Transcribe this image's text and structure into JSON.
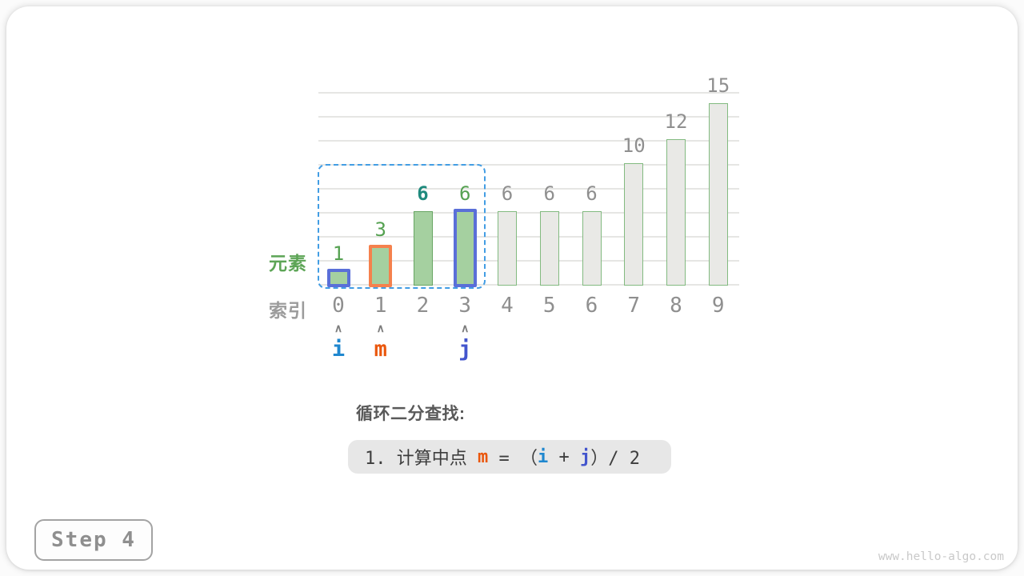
{
  "page": {
    "step_badge": "Step 4",
    "watermark": "www.hello-algo.com"
  },
  "axis_labels": {
    "elements": "元素",
    "index": "索引"
  },
  "caption": {
    "title": "循环二分查找:"
  },
  "formula": {
    "segments": [
      {
        "text": "1. 计算中点 ",
        "color": "#3d3d3d",
        "bold": false
      },
      {
        "text": "m",
        "color": "#ea570d",
        "bold": true
      },
      {
        "text": " = （",
        "color": "#3d3d3d",
        "bold": false
      },
      {
        "text": "i",
        "color": "#1f87cf",
        "bold": true
      },
      {
        "text": " + ",
        "color": "#3d3d3d",
        "bold": false
      },
      {
        "text": "j",
        "color": "#4355cd",
        "bold": true
      },
      {
        "text": "）/ 2",
        "color": "#3d3d3d",
        "bold": false
      }
    ]
  },
  "pointers": [
    {
      "name": "i",
      "index": 0,
      "color": "#1f87cf"
    },
    {
      "name": "m",
      "index": 1,
      "color": "#ea570d"
    },
    {
      "name": "j",
      "index": 3,
      "color": "#4355cd"
    }
  ],
  "colors": {
    "green_fill": "#a5d0a0",
    "green_border": "#67a563",
    "gray_fill": "#e9e9e6",
    "gray_bar_border": "#82ba80",
    "blue_highlight": "#5a6fd8",
    "orange_highlight": "#f5814d",
    "dashed_range": "#429de4",
    "label_green": "#55a151",
    "label_teal": "#1f8a7d",
    "label_gray": "#8f8f8f",
    "axis_green": "#5da556",
    "axis_gray": "#9c9c9c",
    "index_gray": "#8f8f8f"
  },
  "chart_data": {
    "type": "bar",
    "title": "",
    "xlabel": "索引",
    "ylabel": "元素",
    "categories": [
      "0",
      "1",
      "2",
      "3",
      "4",
      "5",
      "6",
      "7",
      "8",
      "9"
    ],
    "values": [
      1,
      3,
      6,
      6,
      6,
      6,
      6,
      10,
      12,
      15
    ],
    "ylim": [
      0,
      16
    ],
    "grid": true,
    "gridline_step": 2,
    "search_range": {
      "from_index": 0,
      "to_index": 3
    },
    "bars": [
      {
        "index": 0,
        "value": 1,
        "fill": "green_fill",
        "border": "blue_highlight",
        "border_width": 4,
        "label_color": "label_green",
        "label_bold": false
      },
      {
        "index": 1,
        "value": 3,
        "fill": "green_fill",
        "border": "orange_highlight",
        "border_width": 4,
        "label_color": "label_green",
        "label_bold": false
      },
      {
        "index": 2,
        "value": 6,
        "fill": "green_fill",
        "border": "green_border",
        "border_width": 1.5,
        "label_color": "label_teal",
        "label_bold": true
      },
      {
        "index": 3,
        "value": 6,
        "fill": "green_fill",
        "border": "blue_highlight",
        "border_width": 4,
        "label_color": "label_green",
        "label_bold": false
      },
      {
        "index": 4,
        "value": 6,
        "fill": "gray_fill",
        "border": "gray_bar_border",
        "border_width": 1.5,
        "label_color": "label_gray",
        "label_bold": false
      },
      {
        "index": 5,
        "value": 6,
        "fill": "gray_fill",
        "border": "gray_bar_border",
        "border_width": 1.5,
        "label_color": "label_gray",
        "label_bold": false
      },
      {
        "index": 6,
        "value": 6,
        "fill": "gray_fill",
        "border": "gray_bar_border",
        "border_width": 1.5,
        "label_color": "label_gray",
        "label_bold": false
      },
      {
        "index": 7,
        "value": 10,
        "fill": "gray_fill",
        "border": "gray_bar_border",
        "border_width": 1.5,
        "label_color": "label_gray",
        "label_bold": false
      },
      {
        "index": 8,
        "value": 12,
        "fill": "gray_fill",
        "border": "gray_bar_border",
        "border_width": 1.5,
        "label_color": "label_gray",
        "label_bold": false
      },
      {
        "index": 9,
        "value": 15,
        "fill": "gray_fill",
        "border": "gray_bar_border",
        "border_width": 1.5,
        "label_color": "label_gray",
        "label_bold": false
      }
    ]
  }
}
